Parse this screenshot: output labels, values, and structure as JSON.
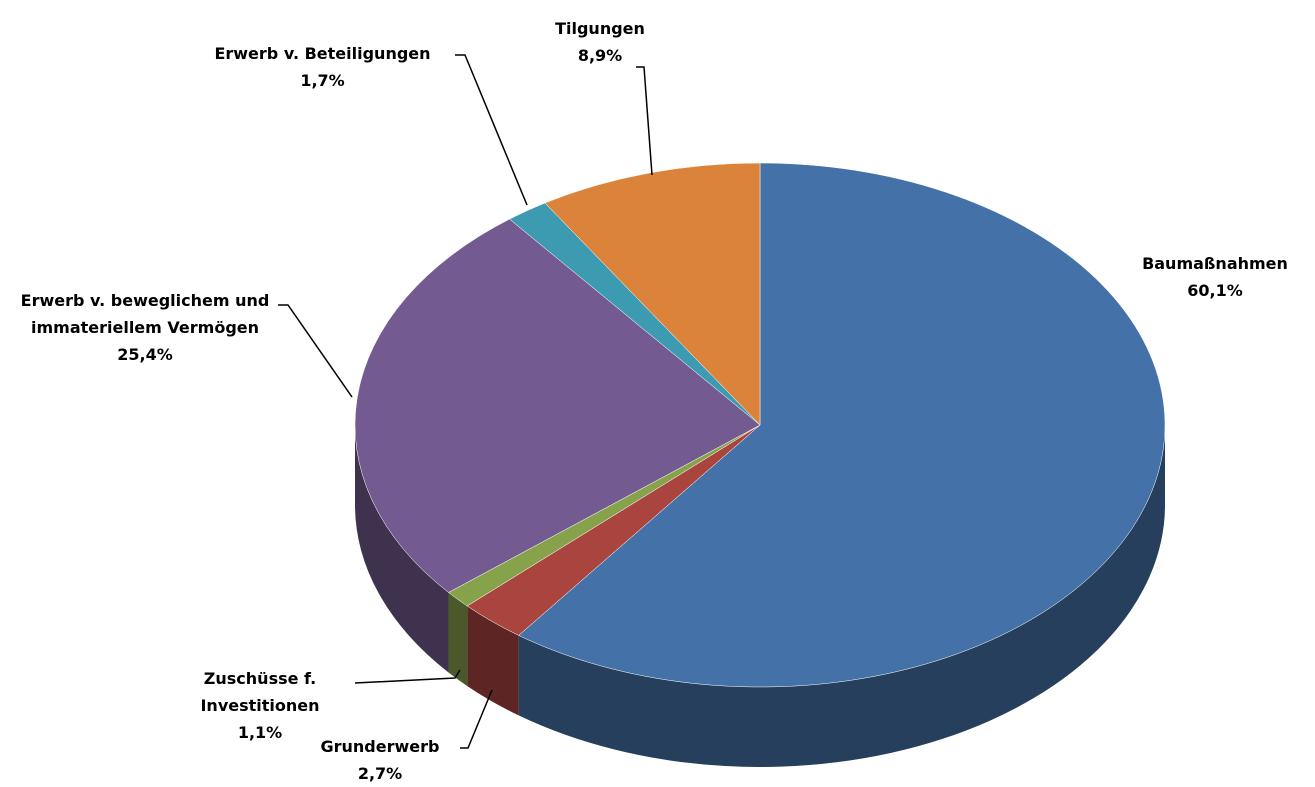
{
  "chart_data": {
    "type": "pie3d",
    "categories": [
      "Baumaßnahmen",
      "Grunderwerb",
      "Zuschüsse f. Investitionen",
      "Erwerb v. beweglichem und immateriellem Vermögen",
      "Erwerb v. Beteiligungen",
      "Tilgungen"
    ],
    "values": [
      60.1,
      2.7,
      1.1,
      25.4,
      1.7,
      8.9
    ],
    "value_labels": [
      "60,1%",
      "2,7%",
      "1,1%",
      "25,4%",
      "1,7%",
      "8,9%"
    ],
    "colors": [
      "#4472a8",
      "#a9443f",
      "#86a24a",
      "#735a90",
      "#3c9bb0",
      "#dc833b"
    ]
  }
}
